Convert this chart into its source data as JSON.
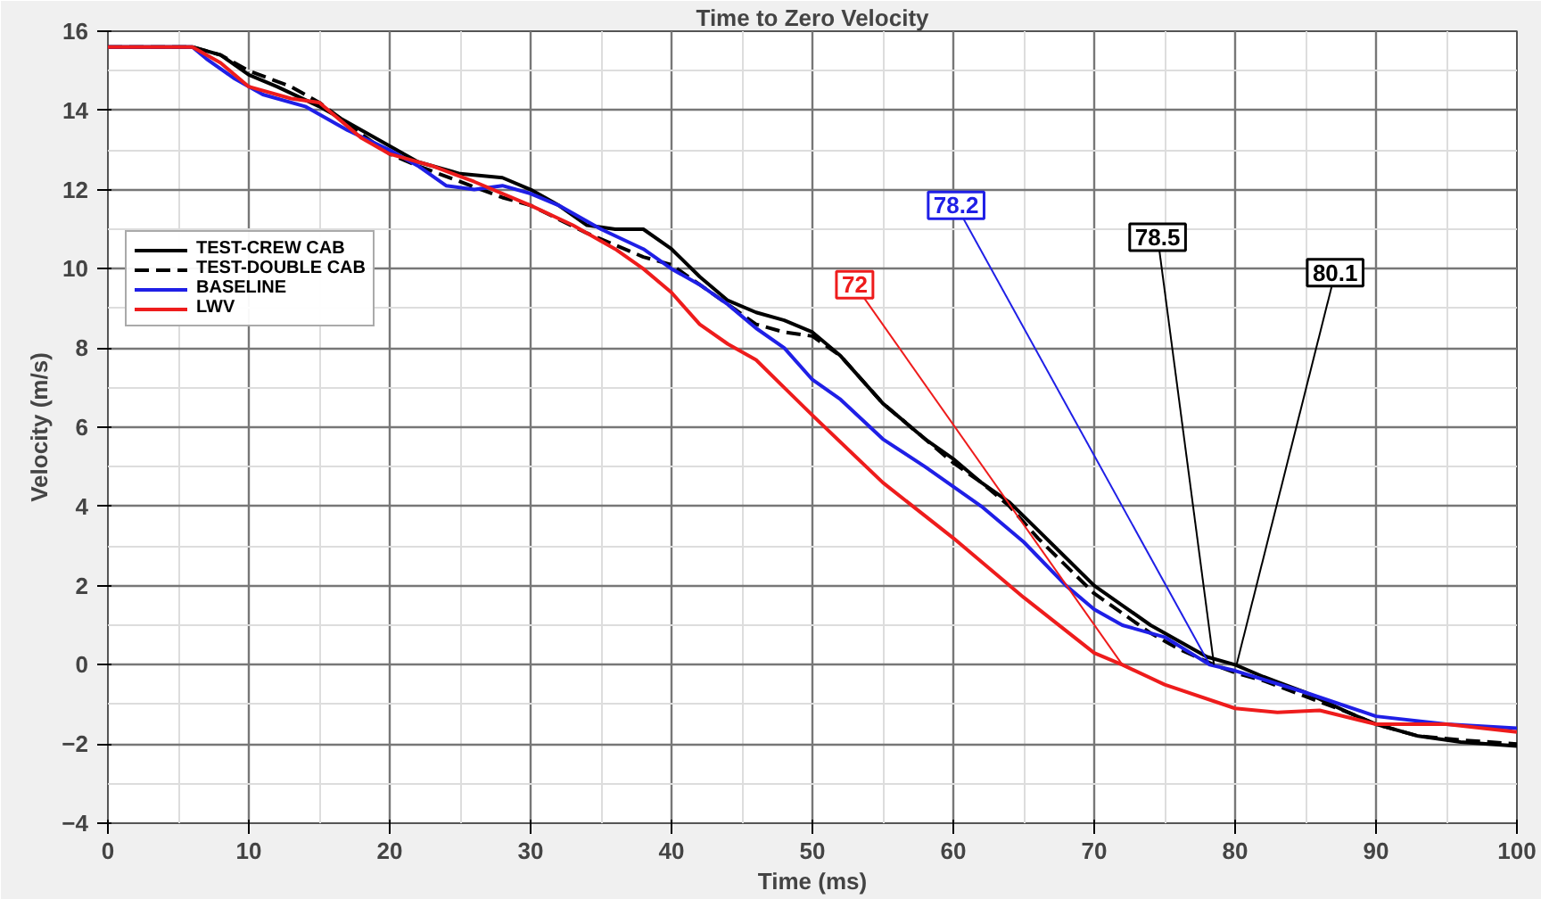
{
  "chart_data": {
    "type": "line",
    "title": "Time to Zero Velocity",
    "xlabel": "Time (ms)",
    "ylabel": "Velocity (m/s)",
    "xlim": [
      0,
      100
    ],
    "ylim": [
      -4,
      16
    ],
    "xticks": [
      0,
      10,
      20,
      30,
      40,
      50,
      60,
      70,
      80,
      90,
      100
    ],
    "yticks": [
      -4,
      -2,
      0,
      2,
      4,
      6,
      8,
      10,
      12,
      14,
      16
    ],
    "grid": true,
    "legend": "top left",
    "series": [
      {
        "name": "TEST-CREW CAB",
        "color": "#000000",
        "line_style": "solid",
        "x": [
          0,
          6,
          8,
          10,
          12,
          15,
          18,
          20,
          22,
          25,
          28,
          30,
          32,
          34,
          36,
          38,
          40,
          42,
          44,
          46,
          48,
          50,
          52,
          55,
          58,
          60,
          62,
          64,
          66,
          68,
          70,
          72,
          74,
          76,
          78,
          80,
          82,
          85,
          88,
          90,
          93,
          96,
          100
        ],
        "values": [
          15.6,
          15.6,
          15.4,
          14.9,
          14.6,
          14.1,
          13.5,
          13.1,
          12.7,
          12.4,
          12.3,
          12.0,
          11.6,
          11.1,
          11.0,
          11.0,
          10.5,
          9.8,
          9.2,
          8.9,
          8.7,
          8.4,
          7.8,
          6.6,
          5.7,
          5.2,
          4.6,
          4.1,
          3.4,
          2.7,
          2.0,
          1.5,
          1.0,
          0.6,
          0.2,
          0.0,
          -0.3,
          -0.7,
          -1.2,
          -1.5,
          -1.8,
          -1.95,
          -2.05
        ]
      },
      {
        "name": "TEST-DOUBLE CAB",
        "color": "#000000",
        "line_style": "dashed",
        "x": [
          0,
          6,
          8,
          10,
          13,
          15,
          18,
          20,
          22,
          25,
          28,
          30,
          34,
          38,
          40,
          42,
          44,
          46,
          48,
          50,
          52,
          55,
          58,
          60,
          62,
          64,
          66,
          68,
          70,
          72,
          74,
          76,
          78.5,
          80,
          82,
          85,
          88,
          90,
          93,
          96,
          100
        ],
        "values": [
          15.6,
          15.6,
          15.4,
          15.0,
          14.6,
          14.2,
          13.4,
          12.9,
          12.6,
          12.2,
          11.8,
          11.6,
          10.9,
          10.3,
          10.1,
          9.6,
          9.1,
          8.6,
          8.4,
          8.3,
          7.8,
          6.6,
          5.7,
          5.1,
          4.6,
          4.0,
          3.2,
          2.5,
          1.8,
          1.3,
          0.8,
          0.4,
          0.0,
          -0.2,
          -0.4,
          -0.8,
          -1.2,
          -1.5,
          -1.8,
          -1.9,
          -2.0
        ]
      },
      {
        "name": "BASELINE",
        "color": "#1f1fe6",
        "line_style": "solid",
        "x": [
          0,
          6,
          7,
          9,
          11,
          14,
          17,
          20,
          22,
          24,
          26,
          28,
          30,
          32,
          35,
          38,
          40,
          42,
          44,
          46,
          48,
          50,
          52,
          55,
          58,
          60,
          62,
          65,
          68,
          70,
          72,
          75,
          78.2,
          80,
          85,
          90,
          95,
          100
        ],
        "values": [
          15.6,
          15.6,
          15.3,
          14.8,
          14.4,
          14.1,
          13.5,
          13.0,
          12.6,
          12.1,
          12.0,
          12.1,
          11.9,
          11.6,
          11.0,
          10.5,
          10.0,
          9.6,
          9.1,
          8.5,
          8.0,
          7.2,
          6.7,
          5.7,
          5.0,
          4.5,
          4.0,
          3.1,
          2.0,
          1.4,
          1.0,
          0.7,
          0.0,
          -0.15,
          -0.7,
          -1.3,
          -1.5,
          -1.6
        ]
      },
      {
        "name": "LWV",
        "color": "#ee1c1c",
        "line_style": "solid",
        "x": [
          0,
          6,
          8,
          10,
          13,
          15,
          18,
          20,
          23,
          26,
          30,
          33,
          36,
          38,
          40,
          42,
          44,
          46,
          48,
          50,
          55,
          60,
          65,
          70,
          72,
          75,
          80,
          83,
          86,
          90,
          95,
          100
        ],
        "values": [
          15.6,
          15.6,
          15.2,
          14.6,
          14.3,
          14.2,
          13.3,
          12.9,
          12.6,
          12.2,
          11.6,
          11.1,
          10.5,
          10.0,
          9.4,
          8.6,
          8.1,
          7.7,
          7.0,
          6.3,
          4.6,
          3.2,
          1.7,
          0.3,
          0.0,
          -0.5,
          -1.1,
          -1.2,
          -1.15,
          -1.5,
          -1.5,
          -1.7
        ]
      }
    ],
    "annotations": [
      {
        "text": "80.1",
        "x": 80.1,
        "y": 0
      },
      {
        "text": "78.5",
        "x": 78.5,
        "y": 0
      },
      {
        "text": "78.2",
        "x": 78.2,
        "y": 0
      },
      {
        "text": "72",
        "x": 72,
        "y": 0
      }
    ]
  }
}
